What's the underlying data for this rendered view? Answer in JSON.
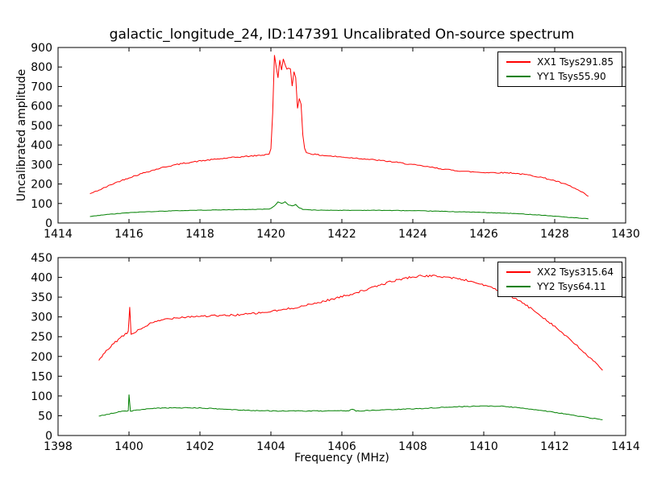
{
  "figure": {
    "title": "galactic_longitude_24, ID:147391 Uncalibrated On-source spectrum",
    "background": "#ffffff"
  },
  "chart_data": [
    {
      "type": "line",
      "title": "",
      "xlabel": "",
      "ylabel": "Uncalibrated amplitude",
      "xlim": [
        1414,
        1430
      ],
      "ylim": [
        0,
        900
      ],
      "xticks": [
        1414,
        1416,
        1418,
        1420,
        1422,
        1424,
        1426,
        1428,
        1430
      ],
      "yticks": [
        0,
        100,
        200,
        300,
        400,
        500,
        600,
        700,
        800,
        900
      ],
      "grid": false,
      "legend_position": "upper right",
      "series": [
        {
          "id": "xx1",
          "name": "XX1 Tsys291.85",
          "color": "#ff0000",
          "noise": 3,
          "points": [
            [
              1414.9,
              150
            ],
            [
              1415.2,
              172
            ],
            [
              1415.6,
              205
            ],
            [
              1416.0,
              232
            ],
            [
              1416.5,
              262
            ],
            [
              1417.0,
              287
            ],
            [
              1417.5,
              305
            ],
            [
              1418.0,
              318
            ],
            [
              1418.5,
              328
            ],
            [
              1419.0,
              337
            ],
            [
              1419.5,
              344
            ],
            [
              1419.8,
              349
            ],
            [
              1419.95,
              355
            ],
            [
              1420.0,
              380
            ],
            [
              1420.05,
              560
            ],
            [
              1420.1,
              862
            ],
            [
              1420.15,
              800
            ],
            [
              1420.2,
              745
            ],
            [
              1420.25,
              838
            ],
            [
              1420.3,
              782
            ],
            [
              1420.35,
              842
            ],
            [
              1420.4,
              815
            ],
            [
              1420.45,
              788
            ],
            [
              1420.5,
              793
            ],
            [
              1420.55,
              788
            ],
            [
              1420.6,
              700
            ],
            [
              1420.65,
              778
            ],
            [
              1420.7,
              745
            ],
            [
              1420.75,
              588
            ],
            [
              1420.8,
              640
            ],
            [
              1420.85,
              612
            ],
            [
              1420.9,
              450
            ],
            [
              1420.95,
              382
            ],
            [
              1421.0,
              362
            ],
            [
              1421.2,
              352
            ],
            [
              1421.5,
              346
            ],
            [
              1422.0,
              338
            ],
            [
              1422.5,
              331
            ],
            [
              1423.0,
              322
            ],
            [
              1423.5,
              312
            ],
            [
              1424.0,
              299
            ],
            [
              1424.5,
              286
            ],
            [
              1425.0,
              273
            ],
            [
              1425.5,
              264
            ],
            [
              1426.0,
              259
            ],
            [
              1426.5,
              258
            ],
            [
              1426.8,
              257
            ],
            [
              1427.0,
              252
            ],
            [
              1427.3,
              245
            ],
            [
              1427.6,
              235
            ],
            [
              1428.0,
              217
            ],
            [
              1428.4,
              192
            ],
            [
              1428.7,
              165
            ],
            [
              1428.95,
              137
            ]
          ]
        },
        {
          "id": "yy1",
          "name": "YY1 Tsys55.90",
          "color": "#008000",
          "noise": 1.2,
          "points": [
            [
              1414.9,
              33
            ],
            [
              1415.3,
              42
            ],
            [
              1415.8,
              50
            ],
            [
              1416.3,
              56
            ],
            [
              1417.0,
              61
            ],
            [
              1417.8,
              65
            ],
            [
              1418.5,
              67
            ],
            [
              1419.3,
              69
            ],
            [
              1419.9,
              71
            ],
            [
              1420.0,
              74
            ],
            [
              1420.1,
              88
            ],
            [
              1420.2,
              108
            ],
            [
              1420.3,
              100
            ],
            [
              1420.4,
              108
            ],
            [
              1420.5,
              93
            ],
            [
              1420.6,
              88
            ],
            [
              1420.7,
              94
            ],
            [
              1420.8,
              78
            ],
            [
              1420.9,
              70
            ],
            [
              1421.2,
              66
            ],
            [
              1422.0,
              65
            ],
            [
              1423.0,
              65
            ],
            [
              1424.0,
              63
            ],
            [
              1425.0,
              59
            ],
            [
              1426.0,
              54
            ],
            [
              1426.8,
              49
            ],
            [
              1427.5,
              42
            ],
            [
              1428.2,
              32
            ],
            [
              1428.95,
              21
            ]
          ]
        }
      ]
    },
    {
      "type": "line",
      "title": "",
      "xlabel": "Frequency (MHz)",
      "ylabel": "",
      "xlim": [
        1398,
        1414
      ],
      "ylim": [
        0,
        450
      ],
      "xticks": [
        1398,
        1400,
        1402,
        1404,
        1406,
        1408,
        1410,
        1412,
        1414
      ],
      "yticks": [
        0,
        50,
        100,
        150,
        200,
        250,
        300,
        350,
        400,
        450
      ],
      "grid": false,
      "legend_position": "upper right",
      "series": [
        {
          "id": "xx2",
          "name": "XX2 Tsys315.64",
          "color": "#ff0000",
          "noise": 2.5,
          "points": [
            [
              1399.15,
              190
            ],
            [
              1399.4,
              218
            ],
            [
              1399.7,
              243
            ],
            [
              1399.9,
              256
            ],
            [
              1399.98,
              262
            ],
            [
              1400.02,
              326
            ],
            [
              1400.06,
              256
            ],
            [
              1400.3,
              268
            ],
            [
              1400.6,
              283
            ],
            [
              1401.0,
              294
            ],
            [
              1401.4,
              299
            ],
            [
              1402.0,
              302
            ],
            [
              1402.6,
              303
            ],
            [
              1403.2,
              306
            ],
            [
              1403.8,
              311
            ],
            [
              1404.4,
              319
            ],
            [
              1405.0,
              329
            ],
            [
              1405.6,
              342
            ],
            [
              1406.2,
              356
            ],
            [
              1406.8,
              372
            ],
            [
              1407.4,
              390
            ],
            [
              1407.9,
              400
            ],
            [
              1408.3,
              404
            ],
            [
              1408.7,
              403
            ],
            [
              1409.1,
              399
            ],
            [
              1409.5,
              393
            ],
            [
              1410.0,
              381
            ],
            [
              1410.5,
              364
            ],
            [
              1411.0,
              341
            ],
            [
              1411.5,
              311
            ],
            [
              1412.0,
              276
            ],
            [
              1412.5,
              237
            ],
            [
              1413.0,
              196
            ],
            [
              1413.35,
              165
            ]
          ]
        },
        {
          "id": "yy2",
          "name": "YY2 Tsys64.11",
          "color": "#008000",
          "noise": 1,
          "points": [
            [
              1399.15,
              49
            ],
            [
              1399.5,
              56
            ],
            [
              1399.8,
              61
            ],
            [
              1399.98,
              62
            ],
            [
              1400.0,
              104
            ],
            [
              1400.04,
              62
            ],
            [
              1400.4,
              66
            ],
            [
              1400.8,
              69
            ],
            [
              1401.2,
              70
            ],
            [
              1401.8,
              70
            ],
            [
              1402.4,
              68
            ],
            [
              1403.0,
              65
            ],
            [
              1403.6,
              63
            ],
            [
              1404.2,
              62
            ],
            [
              1405.0,
              62
            ],
            [
              1405.8,
              62
            ],
            [
              1406.2,
              63
            ],
            [
              1406.3,
              67
            ],
            [
              1406.4,
              62
            ],
            [
              1407.0,
              64
            ],
            [
              1407.6,
              66
            ],
            [
              1408.2,
              68
            ],
            [
              1408.8,
              71
            ],
            [
              1409.4,
              73
            ],
            [
              1410.0,
              75
            ],
            [
              1410.5,
              74
            ],
            [
              1411.0,
              70
            ],
            [
              1411.6,
              64
            ],
            [
              1412.2,
              56
            ],
            [
              1412.8,
              47
            ],
            [
              1413.35,
              40
            ]
          ]
        }
      ]
    }
  ]
}
